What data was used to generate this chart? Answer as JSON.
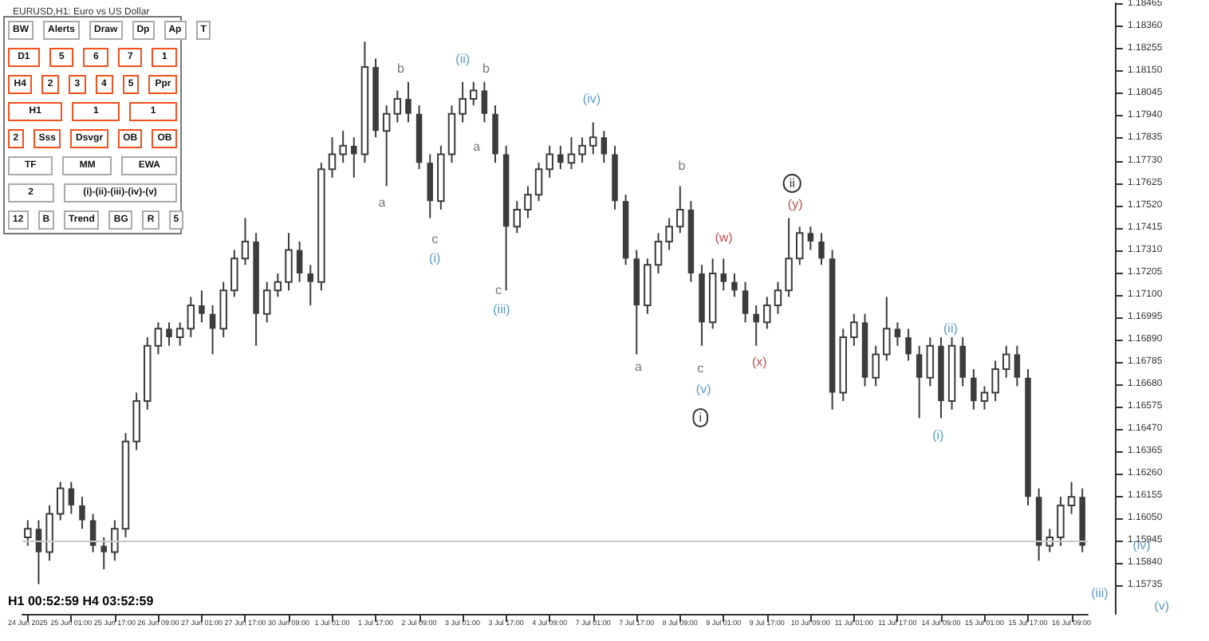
{
  "chart_data": {
    "type": "candlestick",
    "title": "EURUSD,H1: Euro vs US Dollar",
    "color": "#3c3c3c",
    "grid": false,
    "categories": [
      "24 Jun 2025",
      null,
      null,
      null,
      "25 Jun 01:00",
      null,
      null,
      null,
      "25 Jun 17:00",
      null,
      null,
      null,
      "26 Jun 09:00",
      null,
      null,
      null,
      "27 Jun 01:00",
      null,
      null,
      null,
      "27 Jun 17:00",
      null,
      null,
      null,
      "30 Jun 09:00",
      null,
      null,
      null,
      "1 Jul 01:00",
      null,
      null,
      null,
      "1 Jul 17:00",
      null,
      null,
      null,
      "2 Jul 09:00",
      null,
      null,
      null,
      "3 Jul 01:00",
      null,
      null,
      null,
      "3 Jul 17:00",
      null,
      null,
      null,
      "4 Jul 09:00",
      null,
      null,
      null,
      "7 Jul 01:00",
      null,
      null,
      null,
      "7 Jul 17:00",
      null,
      null,
      null,
      "8 Jul 09:00",
      null,
      null,
      null,
      "9 Jul 01:00",
      null,
      null,
      null,
      "9 Jul 17:00",
      null,
      null,
      null,
      "10 Jul 09:00",
      null,
      null,
      null,
      "11 Jul 01:00",
      null,
      null,
      null,
      "11 Jul 17:00",
      null,
      null,
      null,
      "14 Jul 09:00",
      null,
      null,
      null,
      "15 Jul 01:00",
      null,
      null,
      null,
      "15 Jul 17:00",
      null,
      null,
      null,
      "16 Jul 09:00",
      null
    ],
    "ohlc": [
      [
        1.1596,
        1.1604,
        1.1592,
        1.16
      ],
      [
        1.16,
        1.1604,
        1.1574,
        1.1589
      ],
      [
        1.1589,
        1.1611,
        1.1585,
        1.1607
      ],
      [
        1.1607,
        1.1622,
        1.1604,
        1.1619
      ],
      [
        1.1619,
        1.1622,
        1.1607,
        1.1611
      ],
      [
        1.1611,
        1.1615,
        1.16,
        1.1604
      ],
      [
        1.1604,
        1.1607,
        1.1589,
        1.1592
      ],
      [
        1.1592,
        1.1596,
        1.1581,
        1.1589
      ],
      [
        1.1589,
        1.1604,
        1.1585,
        1.16
      ],
      [
        1.16,
        1.1645,
        1.1596,
        1.1641
      ],
      [
        1.1641,
        1.1664,
        1.1637,
        1.166
      ],
      [
        1.166,
        1.169,
        1.1656,
        1.1686
      ],
      [
        1.1686,
        1.1697,
        1.1682,
        1.1694
      ],
      [
        1.1694,
        1.1697,
        1.1686,
        1.169
      ],
      [
        1.169,
        1.1697,
        1.1686,
        1.1694
      ],
      [
        1.1694,
        1.1709,
        1.169,
        1.1705
      ],
      [
        1.1705,
        1.1712,
        1.1697,
        1.1701
      ],
      [
        1.1701,
        1.1705,
        1.1682,
        1.1694
      ],
      [
        1.1694,
        1.1716,
        1.169,
        1.1712
      ],
      [
        1.1712,
        1.1731,
        1.1709,
        1.1727
      ],
      [
        1.1727,
        1.1746,
        1.1724,
        1.1735
      ],
      [
        1.1735,
        1.1739,
        1.1686,
        1.1701
      ],
      [
        1.1701,
        1.1716,
        1.1697,
        1.1712
      ],
      [
        1.1712,
        1.172,
        1.1709,
        1.1716
      ],
      [
        1.1716,
        1.1739,
        1.1712,
        1.1731
      ],
      [
        1.1731,
        1.1735,
        1.1716,
        1.172
      ],
      [
        1.172,
        1.1724,
        1.1705,
        1.1716
      ],
      [
        1.1716,
        1.1772,
        1.1712,
        1.1769
      ],
      [
        1.1769,
        1.1784,
        1.1765,
        1.1776
      ],
      [
        1.1776,
        1.1787,
        1.1772,
        1.178
      ],
      [
        1.178,
        1.1784,
        1.1765,
        1.1776
      ],
      [
        1.1776,
        1.1829,
        1.1772,
        1.1817
      ],
      [
        1.1817,
        1.1821,
        1.1784,
        1.1787
      ],
      [
        1.1787,
        1.1799,
        1.1761,
        1.1795
      ],
      [
        1.1795,
        1.1806,
        1.1791,
        1.1802
      ],
      [
        1.1802,
        1.181,
        1.1791,
        1.1795
      ],
      [
        1.1795,
        1.1799,
        1.1769,
        1.1772
      ],
      [
        1.1772,
        1.1776,
        1.1746,
        1.1754
      ],
      [
        1.1754,
        1.178,
        1.175,
        1.1776
      ],
      [
        1.1776,
        1.1799,
        1.1772,
        1.1795
      ],
      [
        1.1795,
        1.181,
        1.1791,
        1.1802
      ],
      [
        1.1802,
        1.181,
        1.1799,
        1.1806
      ],
      [
        1.1806,
        1.181,
        1.1791,
        1.1795
      ],
      [
        1.1795,
        1.1799,
        1.1772,
        1.1776
      ],
      [
        1.1776,
        1.178,
        1.1712,
        1.1742
      ],
      [
        1.1742,
        1.1754,
        1.1739,
        1.175
      ],
      [
        1.175,
        1.1761,
        1.1746,
        1.1757
      ],
      [
        1.1757,
        1.1772,
        1.1754,
        1.1769
      ],
      [
        1.1769,
        1.178,
        1.1765,
        1.1776
      ],
      [
        1.1776,
        1.178,
        1.1769,
        1.1772
      ],
      [
        1.1772,
        1.1784,
        1.1769,
        1.1776
      ],
      [
        1.1776,
        1.1784,
        1.1772,
        1.178
      ],
      [
        1.178,
        1.1791,
        1.1776,
        1.1784
      ],
      [
        1.1784,
        1.1787,
        1.1772,
        1.1776
      ],
      [
        1.1776,
        1.178,
        1.175,
        1.1754
      ],
      [
        1.1754,
        1.1757,
        1.1724,
        1.1727
      ],
      [
        1.1727,
        1.1731,
        1.1682,
        1.1705
      ],
      [
        1.1705,
        1.1727,
        1.1701,
        1.1724
      ],
      [
        1.1724,
        1.1739,
        1.172,
        1.1735
      ],
      [
        1.1735,
        1.1746,
        1.1731,
        1.1742
      ],
      [
        1.1742,
        1.1761,
        1.1739,
        1.175
      ],
      [
        1.175,
        1.1754,
        1.1716,
        1.172
      ],
      [
        1.172,
        1.1724,
        1.1686,
        1.1697
      ],
      [
        1.1697,
        1.1727,
        1.1694,
        1.172
      ],
      [
        1.172,
        1.1727,
        1.1712,
        1.1716
      ],
      [
        1.1716,
        1.172,
        1.1709,
        1.1712
      ],
      [
        1.1712,
        1.1716,
        1.1697,
        1.1701
      ],
      [
        1.1701,
        1.1705,
        1.1686,
        1.1697
      ],
      [
        1.1697,
        1.1709,
        1.1694,
        1.1705
      ],
      [
        1.1705,
        1.1716,
        1.1701,
        1.1712
      ],
      [
        1.1712,
        1.1746,
        1.1709,
        1.1727
      ],
      [
        1.1727,
        1.1742,
        1.1724,
        1.1739
      ],
      [
        1.1739,
        1.1742,
        1.1731,
        1.1735
      ],
      [
        1.1735,
        1.1739,
        1.1724,
        1.1727
      ],
      [
        1.1727,
        1.1731,
        1.1656,
        1.1664
      ],
      [
        1.1664,
        1.1694,
        1.166,
        1.169
      ],
      [
        1.169,
        1.1701,
        1.1686,
        1.1697
      ],
      [
        1.1697,
        1.1701,
        1.1667,
        1.1671
      ],
      [
        1.1671,
        1.1686,
        1.1667,
        1.1682
      ],
      [
        1.1682,
        1.1709,
        1.1679,
        1.1694
      ],
      [
        1.1694,
        1.1697,
        1.1686,
        1.169
      ],
      [
        1.169,
        1.1694,
        1.1679,
        1.1682
      ],
      [
        1.1682,
        1.1686,
        1.1652,
        1.1671
      ],
      [
        1.1671,
        1.169,
        1.1667,
        1.1686
      ],
      [
        1.1686,
        1.169,
        1.1652,
        1.166
      ],
      [
        1.166,
        1.169,
        1.1656,
        1.1686
      ],
      [
        1.1686,
        1.169,
        1.1667,
        1.1671
      ],
      [
        1.1671,
        1.1675,
        1.1656,
        1.166
      ],
      [
        1.166,
        1.1667,
        1.1656,
        1.1664
      ],
      [
        1.1664,
        1.1679,
        1.166,
        1.1675
      ],
      [
        1.1675,
        1.1686,
        1.1671,
        1.1682
      ],
      [
        1.1682,
        1.1686,
        1.1667,
        1.1671
      ],
      [
        1.1671,
        1.1675,
        1.1611,
        1.1615
      ],
      [
        1.1615,
        1.1619,
        1.1585,
        1.1592
      ],
      [
        1.1592,
        1.16,
        1.1589,
        1.1596
      ],
      [
        1.1596,
        1.1615,
        1.1592,
        1.1611
      ],
      [
        1.1611,
        1.1622,
        1.1607,
        1.1615
      ],
      [
        1.1615,
        1.1619,
        1.1589,
        1.1592
      ]
    ],
    "ylim": [
      1.156,
      1.1847
    ],
    "yticks": [
      {
        "value": 1.18465,
        "label": "1.18465"
      },
      {
        "value": 1.1836,
        "label": "1.18360"
      },
      {
        "value": 1.18255,
        "label": "1.18255"
      },
      {
        "value": 1.1815,
        "label": "1.18150"
      },
      {
        "value": 1.18045,
        "label": "1.18045"
      },
      {
        "value": 1.1794,
        "label": "1.17940"
      },
      {
        "value": 1.17835,
        "label": "1.17835"
      },
      {
        "value": 1.1773,
        "label": "1.17730"
      },
      {
        "value": 1.17625,
        "label": "1.17625"
      },
      {
        "value": 1.1752,
        "label": "1.17520"
      },
      {
        "value": 1.17415,
        "label": "1.17415"
      },
      {
        "value": 1.1731,
        "label": "1.17310"
      },
      {
        "value": 1.17205,
        "label": "1.17205"
      },
      {
        "value": 1.171,
        "label": "1.17100"
      },
      {
        "value": 1.16995,
        "label": "1.16995"
      },
      {
        "value": 1.1689,
        "label": "1.16890"
      },
      {
        "value": 1.16785,
        "label": "1.16785"
      },
      {
        "value": 1.1668,
        "label": "1.16680"
      },
      {
        "value": 1.16575,
        "label": "1.16575"
      },
      {
        "value": 1.1647,
        "label": "1.16470"
      },
      {
        "value": 1.16365,
        "label": "1.16365"
      },
      {
        "value": 1.1626,
        "label": "1.16260"
      },
      {
        "value": 1.16155,
        "label": "1.16155"
      },
      {
        "value": 1.1605,
        "label": "1.16050"
      },
      {
        "value": 1.15945,
        "label": "1.15945"
      },
      {
        "value": 1.1584,
        "label": "1.15840"
      },
      {
        "value": 1.15735,
        "label": "1.15735"
      }
    ],
    "ref_lines": [
      {
        "axis": "y",
        "value": 1.1594,
        "color": "#c8c8c8"
      }
    ],
    "annotations": [
      "a",
      "b",
      "c",
      "(i)",
      "(ii)",
      "a",
      "b",
      "c",
      "(iii)",
      "(iv)",
      "a",
      "b",
      "c",
      "(v)",
      "i",
      "(w)",
      "(x)",
      "ii",
      "(y)",
      "(i)",
      "(ii)",
      "(iii)",
      "(iv)",
      "(v)",
      "H1 00:52:59 H4 03:52:59",
      "BW",
      "Alerts",
      "Draw",
      "Dp",
      "Ap",
      "T",
      "D1",
      "5",
      "6",
      "7",
      "1",
      "H4",
      "2",
      "3",
      "4",
      "5",
      "Ppr",
      "H1",
      "1",
      "1",
      "2",
      "Sss",
      "Dsvgr",
      "OB",
      "OB",
      "TF",
      "MM",
      "EWA",
      "2",
      "(i)-(ii)-(iii)-(iv)-(v)",
      "12",
      "B",
      "Trend",
      "BG",
      "R",
      "5"
    ]
  }
}
